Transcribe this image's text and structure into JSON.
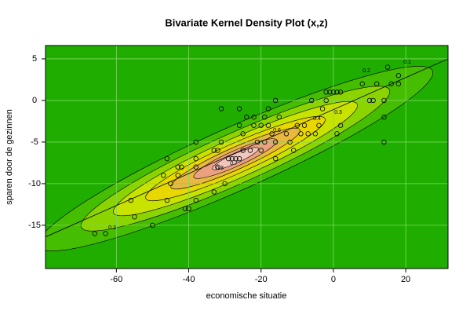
{
  "chart_data": {
    "type": "scatter",
    "title": "Bivariate Kernel Density Plot (x,z)",
    "x_label": "economische situatie",
    "y_label": "sparen door de gezinnen",
    "xlim": [
      -79.6,
      31.7
    ],
    "ylim": [
      -20.2,
      6.6
    ],
    "xticks": [
      -60,
      -40,
      -20,
      0,
      20
    ],
    "yticks": [
      -15,
      -10,
      -5,
      0,
      5
    ],
    "grid": true,
    "point_color": "#000000",
    "line_color": "#000000",
    "regression_line": {
      "x": [
        -79.6,
        31.7
      ],
      "y": [
        -16.4,
        5
      ]
    },
    "contour_labels": [
      "0.1",
      "0.2",
      "0.3",
      "0.4",
      "0.6",
      "0.7",
      "0.8"
    ],
    "x": [
      -66,
      -63,
      -56,
      -55,
      -50,
      -47,
      -46,
      -46,
      -45,
      -43,
      -43,
      -42,
      -41,
      -40,
      -38,
      -38,
      -38,
      -38,
      -33,
      -33,
      -32,
      -32,
      -31,
      -31,
      -30,
      -29,
      -28,
      -27,
      -26,
      -26,
      -26,
      -25,
      -25,
      -24,
      -23,
      -22,
      -22,
      -21,
      -20,
      -20,
      -19,
      -19,
      -18,
      -18,
      -17,
      -16,
      -16,
      -16,
      -15,
      -13,
      -12,
      -11,
      -10,
      -9,
      -8,
      -7,
      -6,
      -5,
      -4,
      -3,
      -2,
      -2,
      -1,
      0,
      1,
      1,
      2,
      2,
      8,
      10,
      11,
      12,
      14,
      14,
      14,
      15,
      16,
      18,
      18
    ],
    "y": [
      -16,
      -16,
      -12,
      -14,
      -15,
      -9,
      -12,
      -7,
      -10,
      -9,
      -8,
      -8,
      -13,
      -13,
      -12,
      -8,
      -7,
      -5,
      -11,
      -6,
      -6,
      -8,
      -5,
      -1,
      -10,
      -7,
      -7,
      -7,
      -7,
      -3,
      -1,
      -4,
      -6,
      -2,
      -6,
      -2,
      -3,
      -5,
      -3,
      -6,
      -5,
      -2,
      -1,
      -3,
      -4,
      -5,
      0,
      -7,
      -2,
      -4,
      -5,
      -6,
      -3,
      -4,
      -3,
      -4,
      0,
      -4,
      -3,
      -1,
      0,
      1,
      1,
      1,
      1,
      -4,
      1,
      -3,
      2,
      0,
      0,
      2,
      -2,
      -5,
      0,
      4,
      2,
      2,
      3
    ]
  }
}
